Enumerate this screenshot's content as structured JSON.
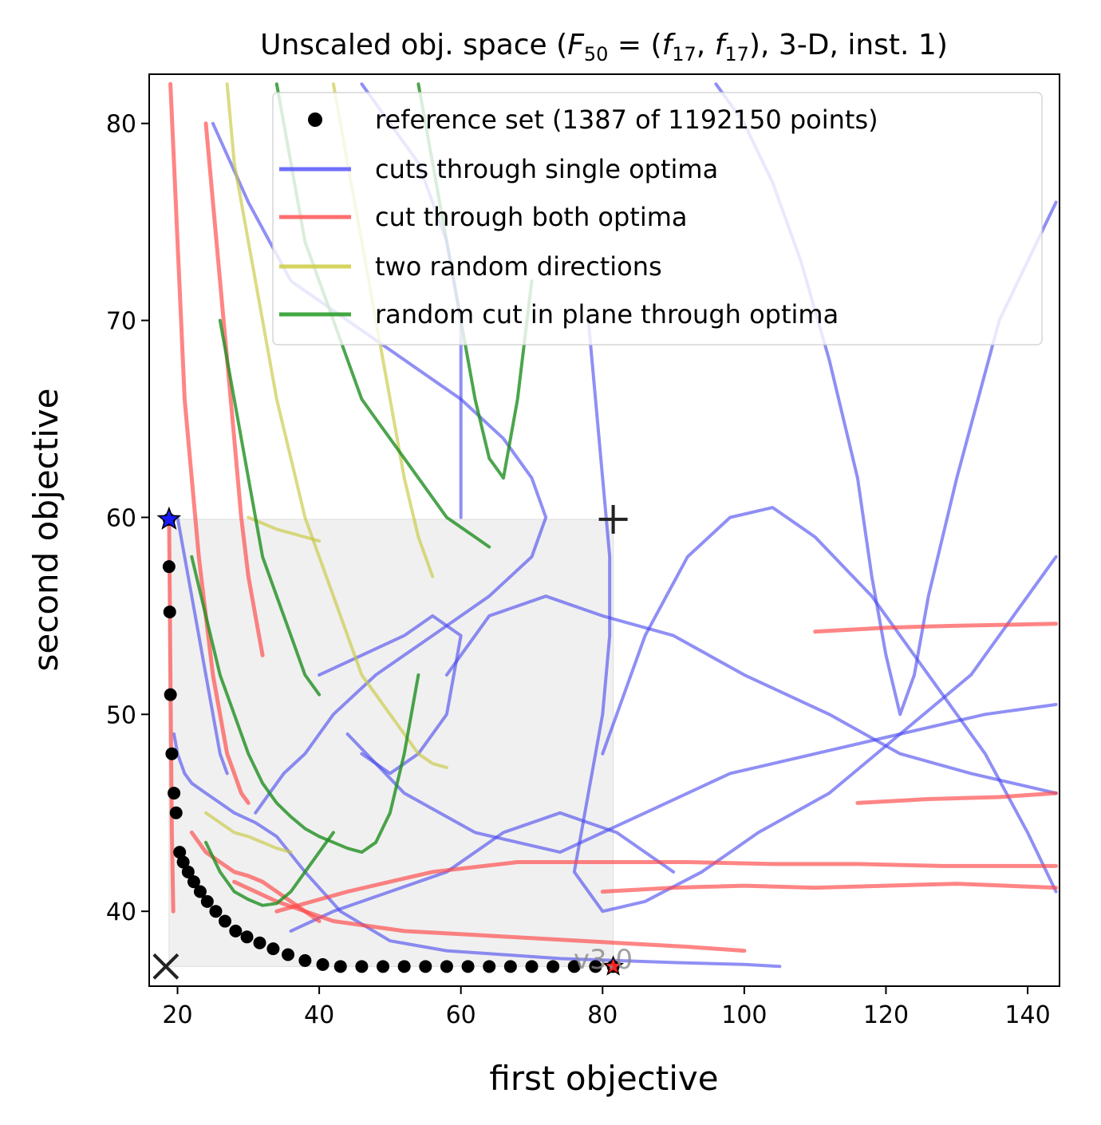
{
  "chart_data": {
    "type": "line",
    "title": "Unscaled obj. space (F",
    "title_parts": {
      "prefix": "Unscaled obj. space (",
      "F": "F",
      "F_sub": "50",
      "eq": " = (",
      "f1": "f",
      "f1_sub": "17",
      "comma": ", ",
      "f2": "f",
      "f2_sub": "17",
      "suffix": "), 3-D, inst. 1)"
    },
    "xlabel": "first objective",
    "ylabel": "second objective",
    "xlim": [
      16,
      144.5
    ],
    "ylim": [
      36.2,
      82.5
    ],
    "xticks": [
      20,
      40,
      60,
      80,
      100,
      120,
      140
    ],
    "yticks": [
      40,
      50,
      60,
      70,
      80
    ],
    "grid": false,
    "legend_position": "top-right",
    "legend": [
      {
        "label": "reference set (1387 of 1192150 points)",
        "marker": "dot",
        "color": "#000000"
      },
      {
        "label": "cuts through single optima",
        "marker": "line",
        "color": "#5555ff"
      },
      {
        "label": "cut through both optima",
        "marker": "line",
        "color": "#ff5555"
      },
      {
        "label": "two random directions",
        "marker": "line",
        "color": "#cccc44"
      },
      {
        "label": "random cut in plane through optima",
        "marker": "line",
        "color": "#229922"
      }
    ],
    "colors": {
      "reference": "#000000",
      "single": "#4444ee",
      "both": "#ff4444",
      "random": "#c8c840",
      "plane": "#1f8f1f",
      "region": "#f0f0f0"
    },
    "ideal_point": [
      18.8,
      37.2
    ],
    "nadir_point": [
      81.5,
      59.9
    ],
    "optimum_1": [
      18.8,
      59.9
    ],
    "optimum_2": [
      81.5,
      37.2
    ],
    "watermark": "v3.0",
    "reference_set": {
      "x": [
        18.8,
        18.8,
        18.9,
        19.0,
        19.2,
        19.5,
        19.8,
        20.3,
        20.8,
        21.5,
        22.3,
        23.2,
        24.2,
        25.4,
        26.7,
        28.2,
        29.8,
        31.6,
        33.5,
        35.6,
        38.0,
        40.5,
        43.0,
        46.0,
        49.0,
        52.0,
        55.0,
        58.0,
        61.0,
        64.0,
        67.0,
        70.0,
        73.0,
        76.0,
        79.0,
        81.5
      ],
      "y": [
        59.9,
        57.5,
        55.2,
        51.0,
        48.0,
        46.0,
        45.0,
        43.0,
        42.5,
        42.0,
        41.5,
        41.0,
        40.5,
        40.0,
        39.5,
        39.0,
        38.7,
        38.4,
        38.1,
        37.8,
        37.5,
        37.3,
        37.2,
        37.2,
        37.2,
        37.2,
        37.2,
        37.2,
        37.2,
        37.2,
        37.2,
        37.2,
        37.2,
        37.2,
        37.2,
        37.2
      ]
    },
    "series": [
      {
        "group": "single",
        "x": [
          19.5,
          20,
          21,
          22,
          24,
          26,
          28,
          31,
          34,
          38,
          43,
          50,
          58,
          66,
          74,
          82,
          90,
          100,
          105
        ],
        "y": [
          49,
          48,
          47,
          46.5,
          46,
          45.5,
          45,
          44.5,
          43.8,
          42,
          40,
          38.5,
          38,
          37.8,
          37.6,
          37.5,
          37.4,
          37.3,
          37.2
        ]
      },
      {
        "group": "single",
        "x": [
          25,
          30,
          36,
          44,
          52,
          60,
          66,
          70,
          72,
          70,
          64,
          56,
          48,
          42,
          38,
          35,
          33,
          31
        ],
        "y": [
          80,
          76,
          72,
          70,
          68,
          66,
          64,
          62,
          60,
          58,
          56,
          54,
          52,
          50,
          48,
          47,
          46,
          45
        ]
      },
      {
        "group": "single",
        "x": [
          80,
          86,
          92,
          98,
          104,
          110,
          118,
          126,
          134,
          140,
          144
        ],
        "y": [
          48,
          54,
          58,
          60,
          60.5,
          59,
          56,
          52,
          48,
          44,
          41
        ]
      },
      {
        "group": "single",
        "x": [
          78,
          79,
          80,
          81,
          81,
          80,
          78,
          76,
          80,
          86,
          94,
          102,
          112,
          122,
          132,
          144
        ],
        "y": [
          70,
          66,
          62,
          58,
          54,
          50,
          46,
          42,
          40,
          40.5,
          42,
          44,
          46,
          49,
          52,
          58
        ]
      },
      {
        "group": "single",
        "x": [
          58,
          64,
          72,
          80,
          90,
          100,
          112,
          122,
          132,
          144
        ],
        "y": [
          52,
          55,
          56,
          55,
          54,
          52,
          50,
          48,
          47,
          46
        ]
      },
      {
        "group": "single",
        "x": [
          44,
          52,
          62,
          74,
          86,
          98,
          110,
          122,
          134,
          144
        ],
        "y": [
          49,
          46,
          44,
          43,
          45,
          47,
          48,
          49,
          50,
          50.5
        ]
      },
      {
        "group": "single",
        "x": [
          96,
          100,
          104,
          108,
          112,
          116,
          118,
          120,
          122,
          124,
          126,
          130,
          136,
          144
        ],
        "y": [
          82,
          80,
          77,
          73,
          68,
          62,
          57,
          53,
          50,
          52,
          56,
          62,
          70,
          76
        ]
      },
      {
        "group": "single",
        "x": [
          36,
          42,
          50,
          58,
          66,
          74,
          82,
          90
        ],
        "y": [
          39,
          40,
          41,
          42,
          44,
          45,
          44,
          42
        ]
      },
      {
        "group": "single",
        "x": [
          40,
          46,
          52,
          56,
          60,
          58,
          54,
          50,
          46
        ],
        "y": [
          52,
          53,
          54,
          55,
          54,
          50,
          48,
          47,
          48
        ]
      },
      {
        "group": "single",
        "x": [
          20,
          21,
          22,
          23,
          24,
          25,
          26,
          27
        ],
        "y": [
          60,
          58,
          56,
          54,
          52,
          50,
          48,
          47
        ]
      },
      {
        "group": "both",
        "x": [
          19,
          19.5,
          20,
          20.5,
          21,
          22,
          23,
          24,
          25,
          26,
          27,
          28,
          29,
          30
        ],
        "y": [
          82,
          78,
          74,
          70,
          66,
          62,
          58,
          55,
          52,
          50,
          48,
          47,
          46,
          45.5
        ]
      },
      {
        "group": "both",
        "x": [
          22,
          24,
          26,
          28,
          30,
          32,
          34,
          36,
          38,
          40
        ],
        "y": [
          44,
          43,
          42.5,
          42,
          41.8,
          41.5,
          41,
          40.5,
          40,
          39.5
        ]
      },
      {
        "group": "both",
        "x": [
          28,
          34,
          42,
          52,
          62,
          72,
          82,
          92,
          100
        ],
        "y": [
          41.5,
          40.5,
          39.5,
          39,
          38.8,
          38.6,
          38.4,
          38.2,
          38
        ]
      },
      {
        "group": "both",
        "x": [
          34,
          44,
          56,
          68,
          80,
          92,
          104,
          116,
          128,
          144
        ],
        "y": [
          40,
          41,
          42,
          42.5,
          42.5,
          42.5,
          42.4,
          42.4,
          42.3,
          42.3
        ]
      },
      {
        "group": "both",
        "x": [
          80,
          90,
          100,
          110,
          120,
          130,
          144
        ],
        "y": [
          41,
          41.2,
          41.3,
          41.2,
          41.3,
          41.4,
          41.2
        ]
      },
      {
        "group": "both",
        "x": [
          110,
          120,
          130,
          144
        ],
        "y": [
          54.2,
          54.4,
          54.5,
          54.6
        ]
      },
      {
        "group": "both",
        "x": [
          116,
          126,
          136,
          144
        ],
        "y": [
          45.5,
          45.7,
          45.8,
          46
        ]
      },
      {
        "group": "both",
        "x": [
          24,
          25,
          26,
          27,
          28,
          29,
          30,
          31,
          32
        ],
        "y": [
          80,
          76,
          72,
          68,
          64,
          60,
          57,
          55,
          53
        ]
      },
      {
        "group": "both",
        "x": [
          18.8,
          18.9,
          19,
          19.1,
          19.2,
          19.4
        ],
        "y": [
          59.9,
          56,
          52,
          48,
          44,
          40
        ]
      },
      {
        "group": "random",
        "x": [
          27,
          28,
          30,
          32,
          34,
          36,
          38,
          40,
          42,
          44,
          46,
          48,
          50,
          52,
          54,
          56,
          58
        ],
        "y": [
          82,
          78,
          74,
          70,
          66,
          63,
          60,
          58,
          56,
          54,
          52,
          51,
          50,
          49,
          48,
          47.5,
          47.3
        ]
      },
      {
        "group": "random",
        "x": [
          24,
          26,
          28,
          30,
          32,
          34,
          36
        ],
        "y": [
          45,
          44.5,
          44,
          43.8,
          43.5,
          43.2,
          43
        ]
      },
      {
        "group": "random",
        "x": [
          42,
          44,
          46,
          48,
          50,
          52,
          54,
          56
        ],
        "y": [
          82,
          78,
          74,
          70,
          66,
          62,
          59,
          57
        ]
      },
      {
        "group": "random",
        "x": [
          30,
          32,
          34,
          36,
          38,
          40
        ],
        "y": [
          60,
          59.7,
          59.4,
          59.2,
          59,
          58.8
        ]
      },
      {
        "group": "plane",
        "x": [
          22,
          24,
          26,
          28,
          30,
          32,
          34,
          36,
          38,
          40,
          42,
          44,
          46,
          48,
          50,
          52,
          54
        ],
        "y": [
          58,
          55,
          52,
          50,
          48,
          46.5,
          45.5,
          44.8,
          44.2,
          43.8,
          43.5,
          43.2,
          43,
          43.5,
          45,
          48,
          52
        ]
      },
      {
        "group": "plane",
        "x": [
          34,
          36,
          38,
          40,
          42,
          44,
          46,
          48,
          50,
          52,
          54,
          56,
          58,
          60,
          62,
          64
        ],
        "y": [
          82,
          78,
          74,
          72,
          70,
          68,
          66,
          65,
          64,
          63,
          62,
          61,
          60,
          59.5,
          59,
          58.5
        ]
      },
      {
        "group": "plane",
        "x": [
          24,
          26,
          28,
          30,
          32,
          34,
          36,
          38,
          40,
          42
        ],
        "y": [
          43.5,
          42,
          41,
          40.6,
          40.3,
          40.4,
          41,
          42,
          43,
          44
        ]
      },
      {
        "group": "plane",
        "x": [
          54,
          56,
          58,
          60,
          62,
          64,
          66,
          68,
          70
        ],
        "y": [
          82,
          78,
          74,
          70,
          66,
          63,
          62,
          66,
          72
        ]
      },
      {
        "group": "plane",
        "x": [
          26,
          28,
          30,
          32,
          34,
          36,
          38,
          40
        ],
        "y": [
          70,
          66,
          62,
          58,
          56,
          54,
          52,
          51
        ]
      },
      {
        "group": "single",
        "x": [
          46,
          50,
          54,
          56,
          58,
          60,
          60
        ],
        "y": [
          82,
          80,
          78,
          76,
          74,
          70,
          60
        ]
      }
    ]
  }
}
